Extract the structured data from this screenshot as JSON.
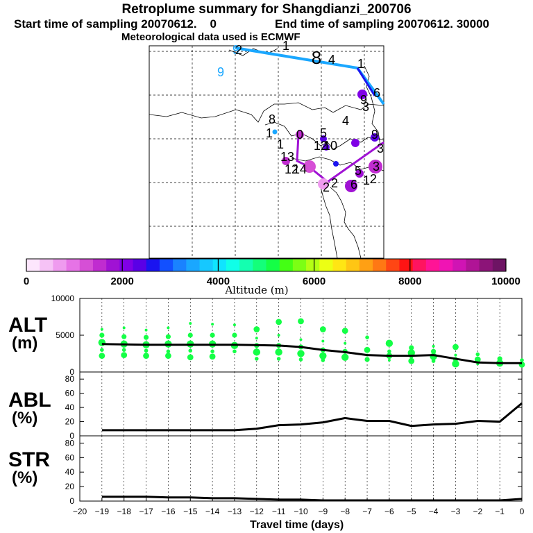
{
  "header": {
    "title": "Retroplume summary for Shangdianzi_200706",
    "line2_start": "Start time of sampling 20070612.    0",
    "line2_end": "End time of sampling 20070612. 30000",
    "line3": "Meteorological data used is ECMWF"
  },
  "colorbar": {
    "tick_labels": [
      "0",
      "2000",
      "4000",
      "6000",
      "8000",
      "10000"
    ],
    "label": "Altitude (m)",
    "colors": [
      "#fde6fd",
      "#f6c2f6",
      "#ef9bef",
      "#e673e6",
      "#d64fd6",
      "#c02cd0",
      "#a012d4",
      "#8000e6",
      "#5a00e6",
      "#1a14f0",
      "#1250ff",
      "#1a82ff",
      "#1aa7ff",
      "#16c8ff",
      "#10e4ff",
      "#10ffe8",
      "#14ffb0",
      "#14ff7a",
      "#14ff46",
      "#44ff14",
      "#7cff14",
      "#b4ff14",
      "#ecff14",
      "#ffe614",
      "#ffc614",
      "#ffa014",
      "#ff7814",
      "#ff4614",
      "#ff1414",
      "#ff1460",
      "#ff1496",
      "#f014b4",
      "#d014b4",
      "#b01496",
      "#8c1478",
      "#6e1464"
    ]
  },
  "map": {
    "labels": [
      "9",
      "9",
      "8",
      "4",
      "1",
      "6",
      "3",
      "9",
      "8",
      "1",
      "1",
      "0",
      "5",
      "4",
      "12",
      "10",
      "9",
      "13",
      "12",
      "14",
      "3",
      "2",
      "5",
      "6",
      "1",
      "2",
      "3",
      "2",
      "1",
      "2"
    ]
  },
  "chart_data": [
    {
      "type": "line",
      "name": "ALT",
      "ylabel": "ALT",
      "yunit": "(m)",
      "ylim": [
        0,
        10000
      ],
      "yticks": [
        0,
        5000,
        10000
      ],
      "x": [
        -19,
        -18,
        -17,
        -16,
        -15,
        -14,
        -13,
        -12,
        -11,
        -10,
        -9,
        -8,
        -7,
        -6,
        -5,
        -4,
        -3,
        -2,
        -1,
        0
      ],
      "values": [
        3800,
        3750,
        3700,
        3700,
        3700,
        3700,
        3700,
        3650,
        3600,
        3400,
        3000,
        2700,
        2300,
        2200,
        2200,
        2300,
        1800,
        1300,
        1200,
        1200
      ],
      "scatter": [
        [
          -19,
          5800
        ],
        [
          -19,
          5000
        ],
        [
          -19,
          4000
        ],
        [
          -19,
          3000
        ],
        [
          -19,
          2200
        ],
        [
          -18,
          6000
        ],
        [
          -18,
          4800
        ],
        [
          -18,
          3800
        ],
        [
          -18,
          3000
        ],
        [
          -18,
          2300
        ],
        [
          -17,
          5700
        ],
        [
          -17,
          4700
        ],
        [
          -17,
          3700
        ],
        [
          -17,
          2900
        ],
        [
          -17,
          2200
        ],
        [
          -16,
          6000
        ],
        [
          -16,
          4800
        ],
        [
          -16,
          3800
        ],
        [
          -16,
          2800
        ],
        [
          -16,
          2200
        ],
        [
          -15,
          6600
        ],
        [
          -15,
          5000
        ],
        [
          -15,
          3800
        ],
        [
          -15,
          2900
        ],
        [
          -15,
          2000
        ],
        [
          -14,
          6500
        ],
        [
          -14,
          5000
        ],
        [
          -14,
          3800
        ],
        [
          -14,
          2800
        ],
        [
          -14,
          2100
        ],
        [
          -13,
          6400
        ],
        [
          -13,
          5000
        ],
        [
          -13,
          3600
        ],
        [
          -13,
          2800
        ],
        [
          -12,
          5800
        ],
        [
          -12,
          4600
        ],
        [
          -12,
          3600
        ],
        [
          -12,
          2700
        ],
        [
          -12,
          1800
        ],
        [
          -11,
          6800
        ],
        [
          -11,
          5000
        ],
        [
          -11,
          3600
        ],
        [
          -11,
          2700
        ],
        [
          -11,
          1800
        ],
        [
          -10,
          6900
        ],
        [
          -10,
          4400
        ],
        [
          -10,
          3400
        ],
        [
          -10,
          2500
        ],
        [
          -10,
          1700
        ],
        [
          -9,
          5800
        ],
        [
          -9,
          4200
        ],
        [
          -9,
          3000
        ],
        [
          -9,
          2200
        ],
        [
          -9,
          1600
        ],
        [
          -8,
          5600
        ],
        [
          -8,
          3900
        ],
        [
          -8,
          2800
        ],
        [
          -8,
          2000
        ],
        [
          -7,
          4700
        ],
        [
          -7,
          3000
        ],
        [
          -7,
          2300
        ],
        [
          -7,
          1700
        ],
        [
          -6,
          3900
        ],
        [
          -6,
          2800
        ],
        [
          -6,
          2200
        ],
        [
          -6,
          1600
        ],
        [
          -5,
          3300
        ],
        [
          -5,
          2600
        ],
        [
          -5,
          2100
        ],
        [
          -5,
          1500
        ],
        [
          -4,
          3500
        ],
        [
          -4,
          2800
        ],
        [
          -4,
          2100
        ],
        [
          -4,
          1500
        ],
        [
          -3,
          3400
        ],
        [
          -3,
          2300
        ],
        [
          -3,
          1700
        ],
        [
          -3,
          1100
        ],
        [
          -2,
          2400
        ],
        [
          -2,
          1700
        ],
        [
          -2,
          1100
        ],
        [
          -1,
          1800
        ],
        [
          -1,
          1200
        ],
        [
          0,
          1600
        ],
        [
          0,
          1000
        ]
      ]
    },
    {
      "type": "line",
      "name": "ABL",
      "ylabel": "ABL",
      "yunit": "(%)",
      "ylim": [
        0,
        90
      ],
      "yticks": [
        0,
        20,
        40,
        60,
        80
      ],
      "x": [
        -19,
        -18,
        -17,
        -16,
        -15,
        -14,
        -13,
        -12,
        -11,
        -10,
        -9,
        -8,
        -7,
        -6,
        -5,
        -4,
        -3,
        -2,
        -1,
        0
      ],
      "values": [
        8,
        8,
        8,
        8,
        8,
        8,
        8,
        10,
        15,
        16,
        19,
        25,
        21,
        21,
        14,
        16,
        17,
        21,
        20,
        46
      ]
    },
    {
      "type": "line",
      "name": "STR",
      "ylabel": "STR",
      "yunit": "(%)",
      "ylim": [
        0,
        90
      ],
      "yticks": [
        0,
        20,
        40,
        60,
        80
      ],
      "x": [
        -19,
        -18,
        -17,
        -16,
        -15,
        -14,
        -13,
        -12,
        -11,
        -10,
        -9,
        -8,
        -7,
        -6,
        -5,
        -4,
        -3,
        -2,
        -1,
        0
      ],
      "values": [
        6,
        6,
        6,
        5,
        5,
        4,
        4,
        3,
        2,
        2,
        1,
        1,
        1,
        1,
        1,
        1,
        1,
        1,
        1,
        3
      ],
      "xlabel": "Travel time (days)",
      "xticks": [
        -20,
        -19,
        -18,
        -17,
        -16,
        -15,
        -14,
        -13,
        -12,
        -11,
        -10,
        -9,
        -8,
        -7,
        -6,
        -5,
        -4,
        -3,
        -2,
        -1,
        0
      ],
      "xlim": [
        -20,
        0
      ]
    }
  ]
}
